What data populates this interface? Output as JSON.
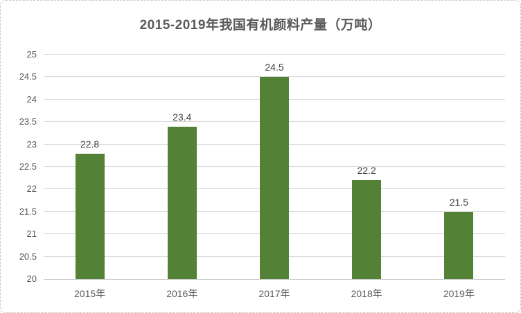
{
  "chart_data": {
    "type": "bar",
    "title": "2015-2019年我国有机颜料产量（万吨）",
    "categories": [
      "2015年",
      "2016年",
      "2017年",
      "2018年",
      "2019年"
    ],
    "values": [
      22.8,
      23.4,
      24.5,
      22.2,
      21.5
    ],
    "xlabel": "",
    "ylabel": "",
    "ylim": [
      20,
      25
    ],
    "y_ticks": [
      20,
      20.5,
      21,
      21.5,
      22,
      22.5,
      23,
      23.5,
      24,
      24.5,
      25
    ],
    "grid": "horizontal",
    "legend": "none",
    "data_labels": true,
    "colors": {
      "bar": "#538135",
      "gridline": "#dadada",
      "axis_line": "#c9c9c9",
      "title_text": "#595959",
      "tick_text": "#595959",
      "data_label_text": "#404040",
      "background": "#ffffff",
      "border": "#c6c6c6"
    }
  }
}
